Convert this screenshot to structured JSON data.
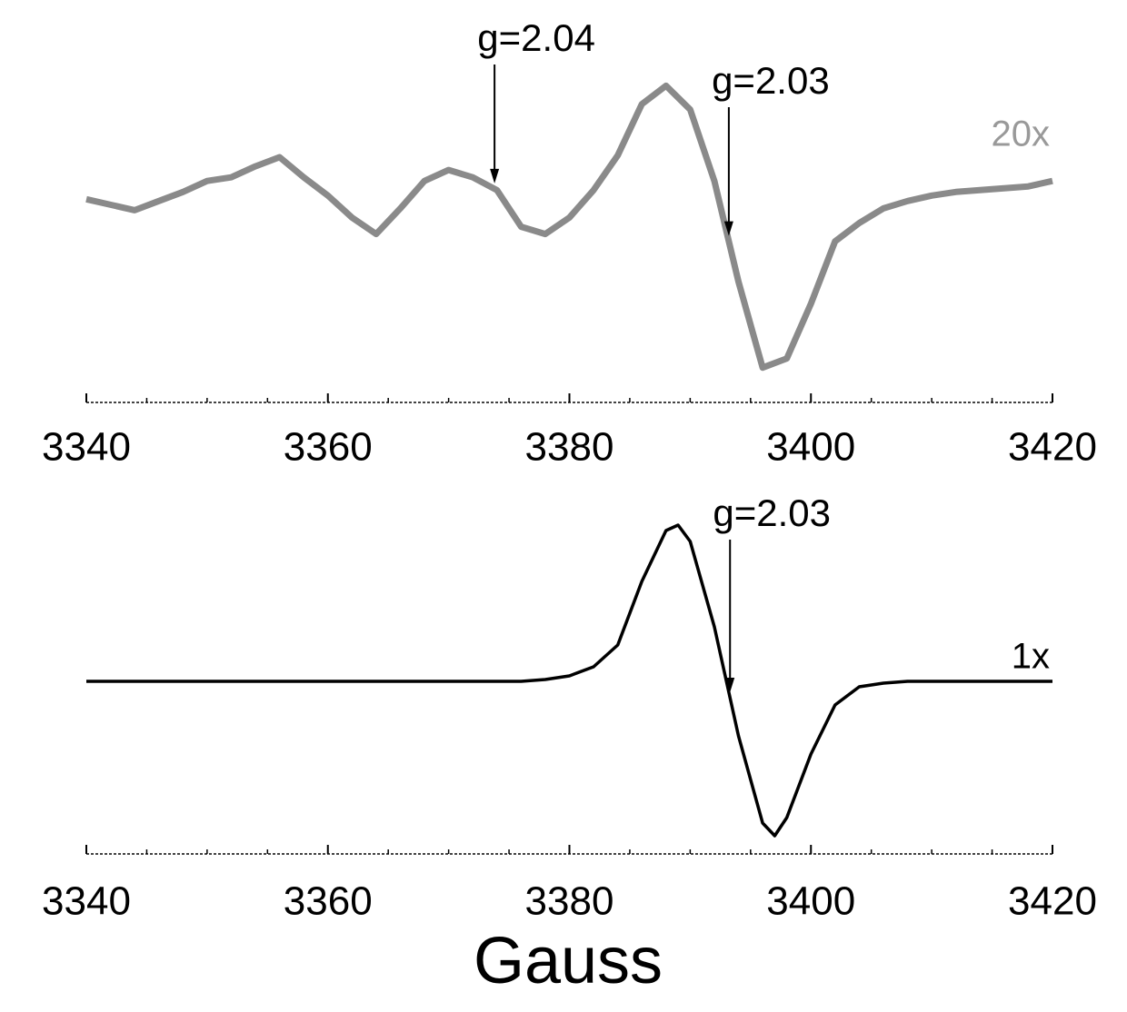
{
  "chart_data": [
    {
      "type": "line",
      "color": "#8a8a8a",
      "scale_label": "20x",
      "x": [
        3340,
        3342,
        3344,
        3346,
        3348,
        3350,
        3352,
        3354,
        3356,
        3358,
        3360,
        3362,
        3364,
        3366,
        3368,
        3370,
        3372,
        3374,
        3376,
        3378,
        3380,
        3382,
        3384,
        3386,
        3388,
        3390,
        3392,
        3394,
        3396,
        3398,
        3400,
        3402,
        3404,
        3406,
        3408,
        3410,
        3412,
        3414,
        3416,
        3418,
        3420
      ],
      "values": [
        1.1,
        0.8,
        0.5,
        1.0,
        1.5,
        2.1,
        2.3,
        2.9,
        3.4,
        2.3,
        1.3,
        0.1,
        -0.8,
        0.6,
        2.1,
        2.7,
        2.3,
        1.6,
        -0.4,
        -0.8,
        0.1,
        1.6,
        3.5,
        6.3,
        7.3,
        6.0,
        2.1,
        -3.4,
        -8.1,
        -7.6,
        -4.6,
        -1.2,
        -0.2,
        0.6,
        1.0,
        1.3,
        1.5,
        1.6,
        1.7,
        1.8,
        2.1
      ],
      "xlim": [
        3340,
        3420
      ],
      "xticks": [
        3340,
        3360,
        3380,
        3400,
        3420
      ],
      "minor_xticks": [
        3345,
        3350,
        3355,
        3365,
        3370,
        3375,
        3385,
        3390,
        3395,
        3405,
        3410,
        3415
      ],
      "ylim": [
        -10,
        10
      ],
      "annotations": [
        {
          "text": "g=2.04",
          "x": 3373.8
        },
        {
          "text": "g=2.03",
          "x": 3393.2
        }
      ]
    },
    {
      "type": "line",
      "color": "#000000",
      "scale_label": "1x",
      "xlabel": "Gauss",
      "x": [
        3340,
        3344,
        3348,
        3352,
        3356,
        3360,
        3364,
        3368,
        3372,
        3376,
        3378,
        3380,
        3382,
        3384,
        3386,
        3388,
        3389,
        3390,
        3392,
        3394,
        3396,
        3397,
        3398,
        3400,
        3402,
        3404,
        3406,
        3408,
        3412,
        3416,
        3420
      ],
      "values": [
        -0.5,
        -0.5,
        -0.5,
        -0.5,
        -0.5,
        -0.5,
        -0.5,
        -0.5,
        -0.5,
        -0.5,
        -0.4,
        -0.2,
        0.3,
        1.5,
        5.0,
        7.8,
        8.1,
        7.2,
        2.5,
        -3.5,
        -8.3,
        -9.0,
        -8.0,
        -4.5,
        -1.8,
        -0.8,
        -0.6,
        -0.5,
        -0.5,
        -0.5,
        -0.5
      ],
      "xlim": [
        3340,
        3420
      ],
      "xticks": [
        3340,
        3360,
        3380,
        3400,
        3420
      ],
      "minor_xticks": [
        3345,
        3350,
        3355,
        3365,
        3370,
        3375,
        3385,
        3390,
        3395,
        3405,
        3410,
        3415
      ],
      "ylim": [
        -10,
        10
      ],
      "annotations": [
        {
          "text": "g=2.03",
          "x": 3393.3
        }
      ]
    }
  ]
}
